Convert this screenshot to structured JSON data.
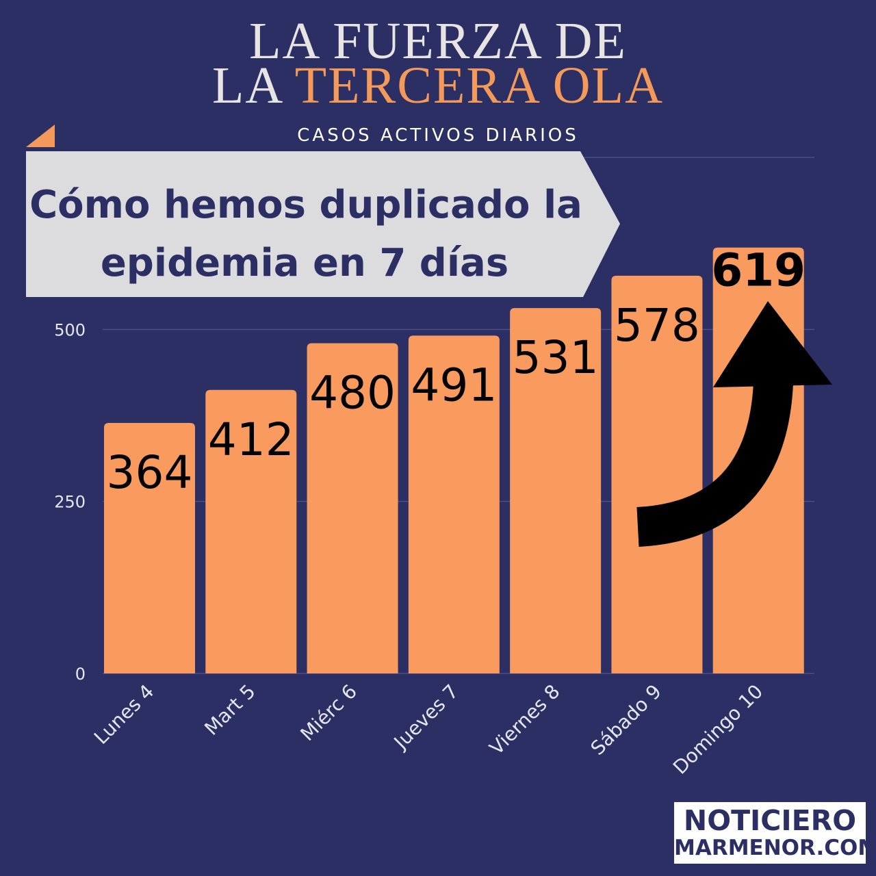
{
  "header": {
    "title_line1": "LA FUERZA DE",
    "title_line2_prefix": "LA ",
    "title_line2_highlight": "TERCERA OLA",
    "subtitle": "CASOS ACTIVOS DIARIOS"
  },
  "banner": {
    "line1": "Cómo hemos duplicado la",
    "line2": "epidemia en 7 días"
  },
  "logo": {
    "line1": "NOTICIERO",
    "line2": "MARMENOR.COM"
  },
  "colors": {
    "background": "#2c2f63",
    "bar": "#f99a5e",
    "accent": "#f39a5a",
    "banner": "#dcdcde"
  },
  "chart_data": {
    "type": "bar",
    "title": "CASOS ACTIVOS DIARIOS",
    "categories": [
      "Lunes 4",
      "Mart 5",
      "Miérc 6",
      "Jueves 7",
      "Viernes 8",
      "Sábado 9",
      "Domingo 10"
    ],
    "values": [
      364,
      412,
      480,
      491,
      531,
      578,
      619
    ],
    "ylim": [
      0,
      750
    ],
    "yticks": [
      0,
      250,
      500,
      750
    ],
    "grid": true,
    "xlabel": "",
    "ylabel": ""
  }
}
